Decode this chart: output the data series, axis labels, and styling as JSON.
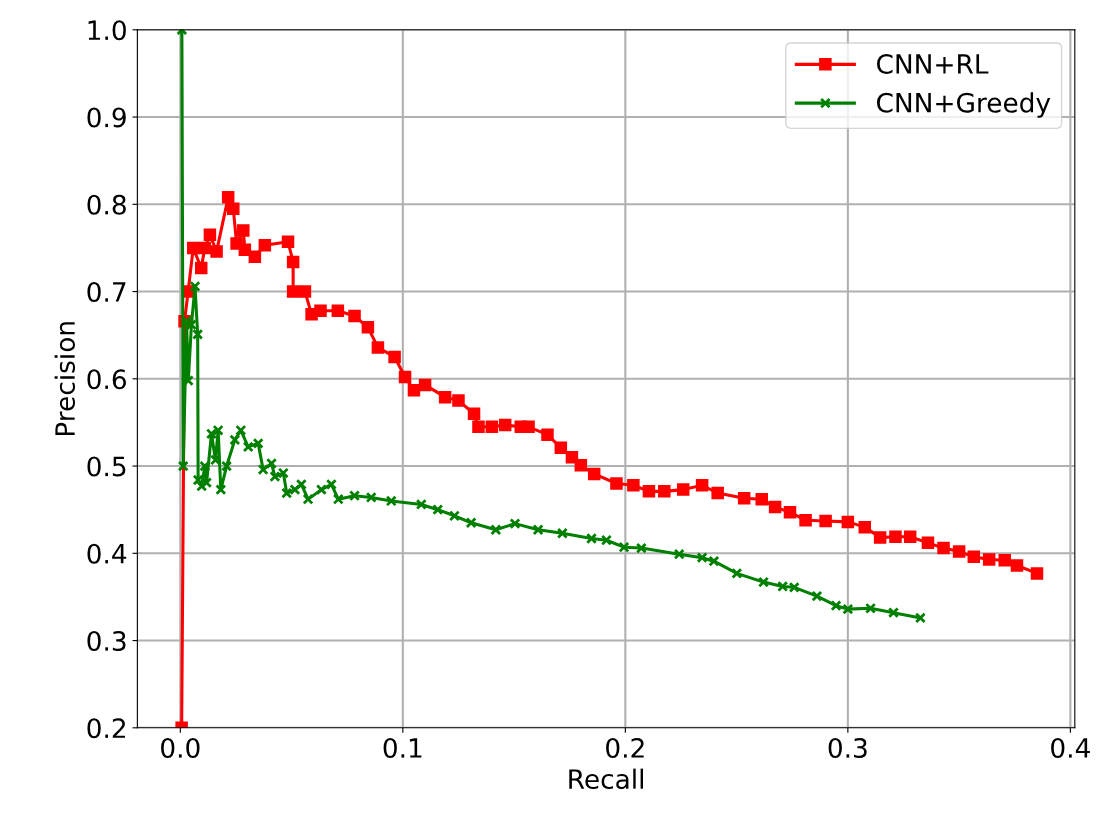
{
  "chart_data": {
    "type": "line",
    "xlabel": "Recall",
    "ylabel": "Precision",
    "xlim": [
      -0.0193,
      0.402
    ],
    "ylim": [
      0.2,
      1.0
    ],
    "xticks": [
      {
        "value": 0,
        "label": "0.0"
      },
      0.1,
      0.2,
      0.3,
      0.4
    ],
    "yticks": [
      0.2,
      0.3,
      0.4,
      0.5,
      0.6,
      0.7,
      0.8,
      0.9,
      {
        "value": 1,
        "label": "1.0"
      }
    ],
    "grid": true,
    "legend": "top right",
    "series": [
      {
        "name": "CNN+RL",
        "color": "#ff0000",
        "marker": "square",
        "x": [
          0.0006,
          0.0019,
          0.0035,
          0.0058,
          0.0094,
          0.011,
          0.0133,
          0.0163,
          0.0215,
          0.0238,
          0.0253,
          0.0283,
          0.029,
          0.0335,
          0.038,
          0.0484,
          0.0507,
          0.0507,
          0.056,
          0.059,
          0.063,
          0.0708,
          0.0783,
          0.0843,
          0.0888,
          0.0963,
          0.101,
          0.105,
          0.11,
          0.119,
          0.125,
          0.132,
          0.134,
          0.14,
          0.146,
          0.153,
          0.1565,
          0.165,
          0.171,
          0.176,
          0.18,
          0.186,
          0.196,
          0.2036,
          0.2106,
          0.2175,
          0.226,
          0.2345,
          0.2415,
          0.2534,
          0.2613,
          0.2673,
          0.274,
          0.281,
          0.29,
          0.3,
          0.3076,
          0.3145,
          0.3214,
          0.328,
          0.336,
          0.343,
          0.35,
          0.3566,
          0.3635,
          0.3705,
          0.376,
          0.385
        ],
        "values": [
          0.2,
          0.666,
          0.7,
          0.75,
          0.727,
          0.75,
          0.765,
          0.746,
          0.808,
          0.795,
          0.755,
          0.77,
          0.748,
          0.74,
          0.753,
          0.757,
          0.734,
          0.7,
          0.7,
          0.674,
          0.678,
          0.678,
          0.672,
          0.659,
          0.636,
          0.625,
          0.602,
          0.587,
          0.593,
          0.579,
          0.575,
          0.56,
          0.545,
          0.545,
          0.547,
          0.545,
          0.545,
          0.536,
          0.521,
          0.51,
          0.501,
          0.491,
          0.48,
          0.478,
          0.471,
          0.471,
          0.473,
          0.478,
          0.469,
          0.463,
          0.462,
          0.453,
          0.447,
          0.438,
          0.437,
          0.436,
          0.43,
          0.418,
          0.419,
          0.419,
          0.412,
          0.406,
          0.402,
          0.396,
          0.393,
          0.392,
          0.386,
          0.377
        ]
      },
      {
        "name": "CNN+Greedy",
        "color": "#008000",
        "marker": "cross",
        "x": [
          0.0007,
          0.0013,
          0.0028,
          0.0036,
          0.005,
          0.0066,
          0.0078,
          0.008,
          0.0096,
          0.011,
          0.0118,
          0.014,
          0.0158,
          0.017,
          0.0182,
          0.0208,
          0.0245,
          0.0272,
          0.0305,
          0.035,
          0.0372,
          0.041,
          0.0425,
          0.0463,
          0.0478,
          0.0515,
          0.0544,
          0.0574,
          0.0634,
          0.0679,
          0.071,
          0.0783,
          0.0858,
          0.0948,
          0.1083,
          0.1157,
          0.1232,
          0.1307,
          0.1418,
          0.1504,
          0.1608,
          0.1717,
          0.1848,
          0.1915,
          0.1994,
          0.2072,
          0.2242,
          0.2345,
          0.2398,
          0.2501,
          0.2621,
          0.2707,
          0.2759,
          0.2861,
          0.2947,
          0.3,
          0.3102,
          0.3205,
          0.3326
        ],
        "values": [
          1.0,
          0.5,
          0.666,
          0.598,
          0.662,
          0.706,
          0.651,
          0.484,
          0.477,
          0.5,
          0.481,
          0.537,
          0.507,
          0.541,
          0.473,
          0.5,
          0.53,
          0.541,
          0.522,
          0.526,
          0.496,
          0.503,
          0.488,
          0.492,
          0.469,
          0.473,
          0.479,
          0.462,
          0.473,
          0.479,
          0.462,
          0.466,
          0.464,
          0.46,
          0.456,
          0.45,
          0.443,
          0.435,
          0.427,
          0.434,
          0.427,
          0.423,
          0.417,
          0.415,
          0.407,
          0.406,
          0.399,
          0.395,
          0.391,
          0.377,
          0.367,
          0.362,
          0.361,
          0.351,
          0.34,
          0.336,
          0.337,
          0.332,
          0.326
        ]
      }
    ]
  }
}
